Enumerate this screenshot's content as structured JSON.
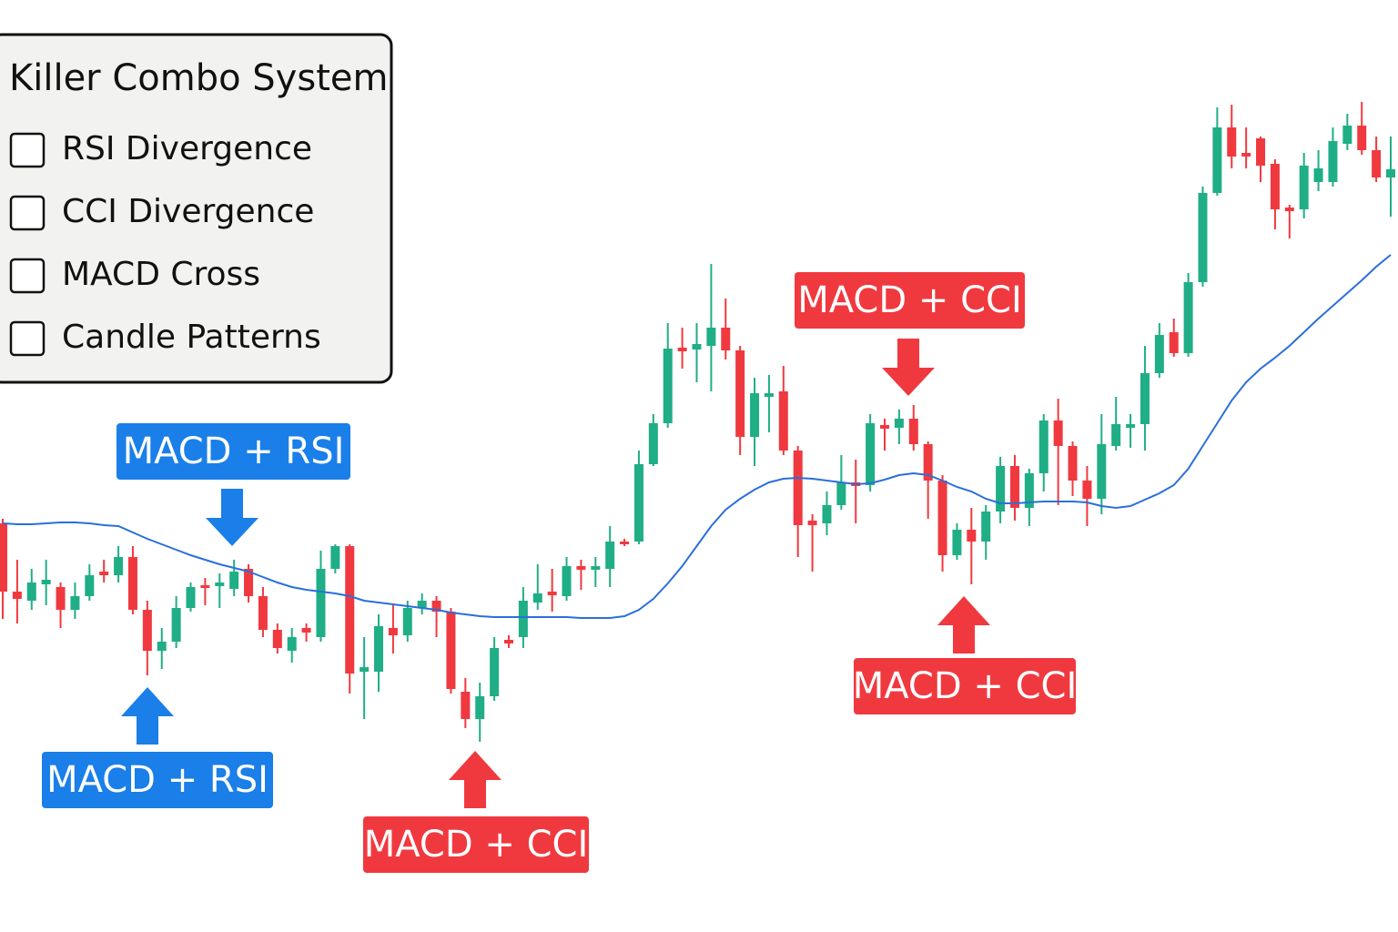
{
  "panel": {
    "title": "Killer Combo System",
    "items": [
      "RSI Divergence",
      "CCI Divergence",
      "MACD Cross",
      "Candle Patterns"
    ]
  },
  "chart_data": {
    "type": "candlestick",
    "up_color": "#1fae86",
    "down_color": "#f0393f",
    "ma_color": "#2a6fdb",
    "ylim": [
      0,
      1024
    ],
    "open": [
      449,
      374,
      364,
      382,
      379,
      354,
      369,
      396,
      392,
      412,
      354,
      309,
      319,
      356,
      381,
      380,
      377,
      399,
      369,
      332,
      309,
      334,
      324,
      399,
      424,
      286,
      286,
      334,
      326,
      356,
      364,
      352,
      264,
      234,
      259,
      321,
      324,
      362,
      374,
      369,
      402,
      398,
      399,
      429,
      429,
      514,
      559,
      642,
      640,
      644,
      664,
      639,
      544,
      588,
      594,
      529,
      452,
      449,
      469,
      494,
      491,
      557,
      554,
      564,
      536,
      496,
      414,
      442,
      429,
      462,
      512,
      466,
      504,
      562,
      534,
      496,
      476,
      534,
      554,
      558,
      614,
      659,
      636,
      714,
      812,
      884,
      856,
      872,
      844,
      796,
      794,
      824,
      824,
      866,
      886,
      859,
      829
    ],
    "high": [
      454,
      409,
      399,
      409,
      384,
      384,
      404,
      409,
      424,
      424,
      364,
      334,
      369,
      384,
      389,
      394,
      409,
      404,
      379,
      339,
      334,
      339,
      419,
      426,
      426,
      324,
      349,
      359,
      364,
      372,
      369,
      356,
      279,
      274,
      324,
      326,
      379,
      404,
      399,
      412,
      409,
      412,
      446,
      432,
      529,
      569,
      669,
      664,
      669,
      734,
      696,
      644,
      609,
      612,
      622,
      534,
      459,
      484,
      524,
      519,
      569,
      564,
      574,
      579,
      539,
      502,
      449,
      466,
      469,
      522,
      524,
      509,
      569,
      586,
      539,
      512,
      569,
      588,
      569,
      644,
      669,
      674,
      724,
      819,
      906,
      909,
      884,
      874,
      849,
      799,
      856,
      859,
      884,
      899,
      912,
      874,
      874
    ],
    "low": [
      344,
      339,
      354,
      359,
      334,
      344,
      364,
      384,
      384,
      349,
      282,
      289,
      312,
      352,
      359,
      356,
      369,
      362,
      324,
      306,
      296,
      319,
      319,
      394,
      262,
      234,
      264,
      306,
      319,
      349,
      324,
      262,
      224,
      209,
      254,
      312,
      312,
      354,
      352,
      364,
      376,
      379,
      379,
      424,
      426,
      512,
      554,
      619,
      604,
      594,
      629,
      524,
      512,
      549,
      524,
      412,
      396,
      436,
      464,
      449,
      484,
      529,
      536,
      529,
      454,
      396,
      409,
      382,
      409,
      449,
      452,
      446,
      484,
      469,
      479,
      446,
      459,
      529,
      532,
      529,
      609,
      632,
      632,
      709,
      809,
      839,
      839,
      824,
      772,
      762,
      784,
      814,
      819,
      859,
      854,
      824,
      786
    ],
    "close": [
      374,
      366,
      384,
      387,
      354,
      369,
      392,
      392,
      412,
      354,
      309,
      319,
      356,
      379,
      378,
      384,
      396,
      369,
      332,
      312,
      324,
      329,
      399,
      424,
      284,
      291,
      336,
      326,
      356,
      364,
      352,
      267,
      234,
      259,
      312,
      317,
      364,
      372,
      370,
      402,
      398,
      402,
      429,
      426,
      514,
      559,
      641,
      638,
      646,
      664,
      639,
      544,
      592,
      592,
      529,
      447,
      447,
      469,
      494,
      490,
      559,
      553,
      564,
      536,
      496,
      414,
      442,
      429,
      462,
      512,
      466,
      504,
      562,
      534,
      496,
      476,
      536,
      558,
      558,
      614,
      656,
      636,
      714,
      812,
      884,
      852,
      852,
      842,
      794,
      792,
      842,
      839,
      869,
      886,
      859,
      829,
      838
    ],
    "ma": [
      449,
      448,
      448,
      449,
      450,
      450,
      449,
      447,
      446,
      439,
      432,
      426,
      420,
      414,
      409,
      404,
      400,
      396,
      390,
      384,
      379,
      376,
      374,
      372,
      369,
      364,
      362,
      360,
      358,
      356,
      354,
      351,
      349,
      347,
      346,
      346,
      346,
      346,
      346,
      346,
      345,
      345,
      345,
      347,
      354,
      366,
      383,
      402,
      424,
      446,
      464,
      476,
      486,
      494,
      498,
      499,
      498,
      496,
      494,
      492,
      493,
      497,
      502,
      504,
      502,
      496,
      489,
      484,
      476,
      471,
      471,
      472,
      473,
      473,
      473,
      472,
      468,
      466,
      468,
      475,
      482,
      491,
      509,
      534,
      559,
      584,
      604,
      619,
      631,
      644,
      659,
      674,
      688,
      702,
      716,
      731,
      744
    ],
    "annotations": [
      {
        "text": "MACD + RSI",
        "color": "#1a7fe8"
      },
      {
        "text": "MACD + RSI",
        "color": "#1a7fe8"
      },
      {
        "text": "MACD + CCI",
        "color": "#f0393f"
      },
      {
        "text": "MACD + CCI",
        "color": "#f0393f"
      },
      {
        "text": "MACD + CCI",
        "color": "#f0393f"
      }
    ]
  }
}
